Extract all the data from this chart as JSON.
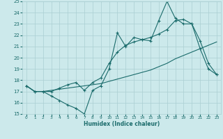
{
  "xlabel": "Humidex (Indice chaleur)",
  "xlim": [
    -0.5,
    23.5
  ],
  "ylim": [
    15,
    25
  ],
  "xticks": [
    0,
    1,
    2,
    3,
    4,
    5,
    6,
    7,
    8,
    9,
    10,
    11,
    12,
    13,
    14,
    15,
    16,
    17,
    18,
    19,
    20,
    21,
    22,
    23
  ],
  "yticks": [
    15,
    16,
    17,
    18,
    19,
    20,
    21,
    22,
    23,
    24,
    25
  ],
  "bg_color": "#cce9eb",
  "grid_color": "#aacfd2",
  "line_color": "#1a6b6b",
  "line1_x": [
    0,
    1,
    2,
    3,
    4,
    5,
    6,
    7,
    8,
    9,
    10,
    11,
    12,
    13,
    14,
    15,
    16,
    17,
    18,
    19,
    20,
    21,
    22,
    23
  ],
  "line1_y": [
    17.5,
    17.0,
    17.0,
    16.6,
    16.2,
    15.8,
    15.5,
    15.0,
    17.1,
    17.5,
    19.0,
    22.2,
    21.0,
    21.8,
    21.6,
    21.5,
    23.3,
    25.0,
    23.5,
    23.0,
    23.0,
    20.8,
    19.0,
    18.5
  ],
  "line2_x": [
    0,
    1,
    2,
    3,
    4,
    5,
    6,
    7,
    8,
    9,
    10,
    11,
    12,
    13,
    14,
    15,
    16,
    17,
    18,
    19,
    20,
    21,
    22,
    23
  ],
  "line2_y": [
    17.5,
    17.0,
    17.0,
    17.1,
    17.2,
    17.3,
    17.4,
    17.5,
    17.6,
    17.7,
    17.9,
    18.1,
    18.3,
    18.5,
    18.7,
    18.9,
    19.2,
    19.5,
    19.9,
    20.2,
    20.5,
    20.8,
    21.1,
    21.4
  ],
  "line3_x": [
    0,
    1,
    2,
    3,
    4,
    5,
    6,
    7,
    8,
    9,
    10,
    11,
    12,
    13,
    14,
    15,
    16,
    17,
    18,
    19,
    20,
    21,
    22,
    23
  ],
  "line3_y": [
    17.5,
    17.0,
    17.0,
    17.0,
    17.3,
    17.6,
    17.8,
    17.1,
    17.8,
    18.2,
    19.5,
    20.5,
    21.1,
    21.4,
    21.6,
    21.8,
    22.1,
    22.5,
    23.3,
    23.4,
    23.0,
    21.5,
    19.5,
    18.5
  ]
}
